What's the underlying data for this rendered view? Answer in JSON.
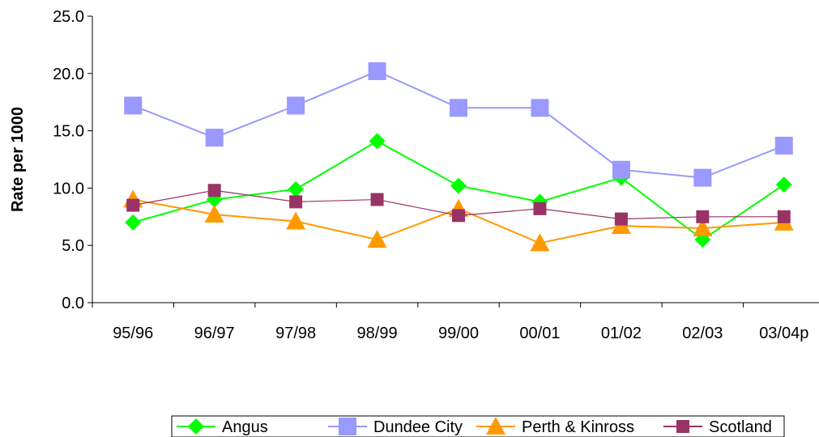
{
  "chart_data": {
    "type": "line",
    "title": "",
    "xlabel": "",
    "ylabel": "Rate per 1000",
    "ylim": [
      0,
      25
    ],
    "yticks": [
      "0.0",
      "5.0",
      "10.0",
      "15.0",
      "20.0",
      "25.0"
    ],
    "categories": [
      "95/96",
      "96/97",
      "97/98",
      "98/99",
      "99/00",
      "00/01",
      "01/02",
      "02/03",
      "03/04p"
    ],
    "grid": false,
    "legend_position": "bottom",
    "series": [
      {
        "name": "Angus",
        "color": "#00ff00",
        "marker": "diamond",
        "values": [
          7.0,
          9.0,
          9.9,
          14.1,
          10.2,
          8.8,
          10.9,
          5.5,
          10.3
        ]
      },
      {
        "name": "Dundee City",
        "color": "#9999ff",
        "marker": "square",
        "values": [
          17.2,
          14.4,
          17.2,
          20.2,
          17.0,
          17.0,
          11.6,
          10.9,
          13.7
        ]
      },
      {
        "name": "Perth & Kinross",
        "color": "#ff9900",
        "marker": "triangle",
        "values": [
          9.0,
          7.7,
          7.1,
          5.5,
          8.2,
          5.2,
          6.7,
          6.5,
          7.0
        ]
      },
      {
        "name": "Scotland",
        "color": "#993366",
        "marker": "square-small",
        "values": [
          8.5,
          9.8,
          8.8,
          9.0,
          7.6,
          8.2,
          7.3,
          7.5,
          7.5
        ]
      }
    ]
  }
}
